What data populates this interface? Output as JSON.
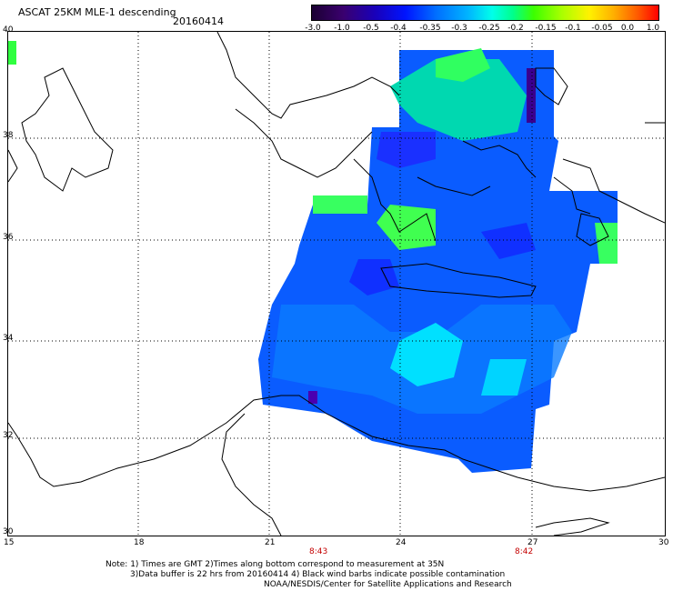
{
  "header": {
    "title": "ASCAT 25KM MLE-1 descending",
    "date": "20160414"
  },
  "colorbar": {
    "ticks": [
      "-3.0",
      "-1.0",
      "-0.5",
      "-0.4",
      "-0.35",
      "-0.3",
      "-0.25",
      "-0.2",
      "-0.15",
      "-0.1",
      "-0.05",
      "0.0",
      "1.0"
    ]
  },
  "axes": {
    "lon_ticks": [
      "15",
      "18",
      "21",
      "24",
      "27",
      "30"
    ],
    "lat_ticks": [
      "40",
      "38",
      "36",
      "34",
      "32",
      "30"
    ]
  },
  "times": [
    "8:43",
    "8:42"
  ],
  "notes": {
    "line1": "Note: 1) Times are GMT 2)Times along bottom correspond to measurement at 35N",
    "line2": "3)Data buffer is 22 hrs from 20160414 4) Black wind barbs indicate possible contamination",
    "line3": "NOAA/NESDIS/Center for Satellite Applications and Research"
  },
  "map": {
    "grid": "dotted",
    "land_outline": "black",
    "data_palette": [
      "#0a28ff",
      "#0070ff",
      "#00b4ff",
      "#00ffea",
      "#00ff8c",
      "#3cff00",
      "#2a00a0"
    ]
  }
}
